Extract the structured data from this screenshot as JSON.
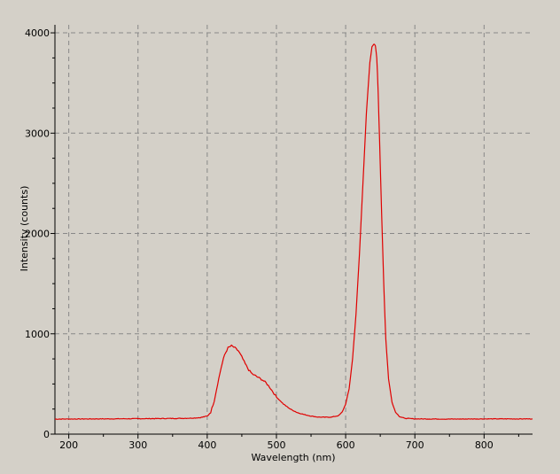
{
  "chart_data": {
    "type": "line",
    "title": "",
    "xlabel": "Wavelength (nm)",
    "ylabel": "Intensity (counts)",
    "xlim": [
      180,
      870
    ],
    "ylim": [
      0,
      4080
    ],
    "x_ticks": [
      200,
      300,
      400,
      500,
      600,
      700,
      800
    ],
    "y_ticks": [
      0,
      1000,
      2000,
      3000,
      4000
    ],
    "grid": true,
    "legend": "none",
    "colors": {
      "background": "#d4d0c8",
      "line": "#e00000",
      "grid": "#888888",
      "axis": "#000000"
    },
    "series": [
      {
        "x": [
          180,
          250,
          330,
          370,
          380,
          390,
          400,
          405,
          410,
          415,
          420,
          425,
          430,
          435,
          440,
          445,
          450,
          455,
          460,
          465,
          470,
          475,
          480,
          485,
          490,
          495,
          500,
          510,
          520,
          530,
          540,
          550,
          560,
          570,
          580,
          590,
          595,
          600,
          605,
          610,
          615,
          620,
          625,
          630,
          635,
          638,
          641,
          643,
          645,
          646,
          647,
          648,
          650,
          652,
          655,
          658,
          662,
          667,
          672,
          678,
          685,
          700,
          750,
          800,
          870
        ],
        "y": [
          150,
          152,
          155,
          158,
          160,
          165,
          180,
          220,
          330,
          500,
          660,
          790,
          860,
          880,
          860,
          830,
          770,
          700,
          640,
          600,
          580,
          560,
          540,
          510,
          470,
          420,
          370,
          300,
          250,
          215,
          195,
          180,
          170,
          168,
          170,
          185,
          220,
          300,
          450,
          750,
          1200,
          1800,
          2500,
          3200,
          3700,
          3860,
          3890,
          3870,
          3750,
          3600,
          3400,
          3150,
          2700,
          2200,
          1500,
          950,
          550,
          320,
          220,
          175,
          158,
          152,
          150,
          152,
          152
        ]
      }
    ]
  }
}
